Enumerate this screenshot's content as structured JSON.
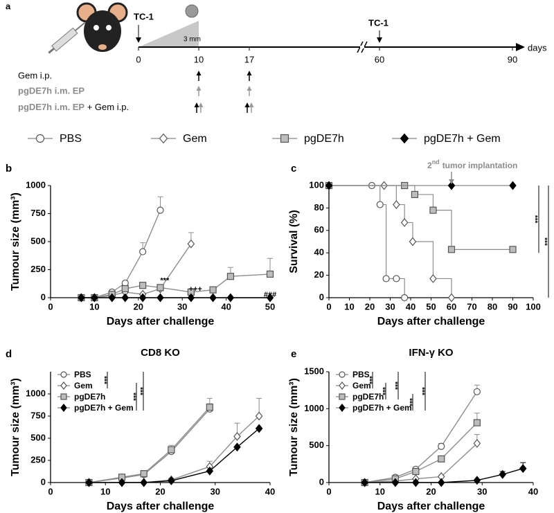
{
  "timeline": {
    "panel": "a",
    "start_label": "TC-1",
    "size_label": "3 mm",
    "rechallenge_label": "TC-1",
    "unit": "days",
    "ticks": [
      0,
      10,
      17,
      60,
      90
    ],
    "rows": [
      [
        "Gem i.p."
      ],
      [
        "pgDE7h i.m. EP"
      ],
      [
        "pgDE7h i.m. EP",
        "+ Gem i.p."
      ]
    ]
  },
  "chart_data": [
    {
      "type": "line",
      "panel": "b",
      "x_label": "Days after challenge",
      "y_label": "Tumour size (mm³)",
      "xlim": [
        0,
        50
      ],
      "xticks": [
        0,
        10,
        20,
        30,
        40,
        50
      ],
      "ylim": [
        0,
        1000
      ],
      "yticks": [
        0,
        250,
        500,
        750,
        1000
      ],
      "annotations": [
        "***",
        "+++",
        "###"
      ],
      "series": [
        {
          "name": "PBS",
          "marker": "circle",
          "color": "#8c8c8c",
          "marker_fill": "#ffffff",
          "x": [
            7,
            10,
            14,
            17,
            21,
            25
          ],
          "values": [
            0,
            0,
            50,
            130,
            410,
            780
          ],
          "errors": [
            0,
            0,
            10,
            20,
            80,
            120
          ]
        },
        {
          "name": "Gem",
          "marker": "diamond",
          "color": "#8c8c8c",
          "marker_fill": "#ffffff",
          "x": [
            7,
            10,
            14,
            17,
            21,
            25,
            32
          ],
          "values": [
            0,
            0,
            20,
            50,
            30,
            80,
            480
          ],
          "errors": [
            0,
            0,
            5,
            10,
            10,
            30,
            100
          ]
        },
        {
          "name": "pgDE7h",
          "marker": "square",
          "color": "#8c8c8c",
          "marker_fill": "#bdbdbd",
          "x": [
            7,
            10,
            14,
            17,
            21,
            25,
            32,
            37,
            41,
            50
          ],
          "values": [
            0,
            0,
            30,
            80,
            110,
            90,
            50,
            70,
            190,
            210
          ],
          "errors": [
            0,
            0,
            10,
            20,
            20,
            20,
            20,
            20,
            80,
            140
          ]
        },
        {
          "name": "pgDE7h + Gem",
          "marker": "diamond",
          "color": "#000000",
          "marker_fill": "#000000",
          "x": [
            7,
            10,
            14,
            17,
            21,
            25,
            32,
            37,
            41,
            50
          ],
          "values": [
            0,
            0,
            0,
            0,
            0,
            0,
            0,
            0,
            0,
            0
          ]
        }
      ]
    },
    {
      "type": "step",
      "panel": "c",
      "x_label": "Days after challenge",
      "y_label": "Survival (%)",
      "xlim": [
        0,
        100
      ],
      "xticks": [
        0,
        10,
        20,
        30,
        40,
        50,
        60,
        70,
        80,
        90,
        100
      ],
      "ylim": [
        0,
        100
      ],
      "yticks": [
        0,
        20,
        40,
        60,
        80,
        100
      ],
      "annotation_parts": [
        "2",
        "nd",
        "tumor implantation"
      ],
      "significance": [
        "***",
        "***"
      ],
      "series": [
        {
          "name": "PBS",
          "marker": "circle",
          "color": "#8c8c8c",
          "marker_fill": "#ffffff",
          "x": [
            0,
            21,
            25,
            28,
            33,
            37
          ],
          "values": [
            100,
            100,
            83,
            17,
            17,
            0
          ]
        },
        {
          "name": "Gem",
          "marker": "diamond",
          "color": "#8c8c8c",
          "marker_fill": "#ffffff",
          "x": [
            0,
            27,
            33,
            37,
            41,
            51,
            60
          ],
          "values": [
            100,
            100,
            83,
            67,
            50,
            17,
            0
          ]
        },
        {
          "name": "pgDE7h",
          "marker": "square",
          "color": "#8c8c8c",
          "marker_fill": "#bdbdbd",
          "x": [
            0,
            37,
            42,
            51,
            60,
            90
          ],
          "values": [
            100,
            100,
            92,
            78,
            43,
            43
          ]
        },
        {
          "name": "pgDE7h + Gem",
          "marker": "diamond",
          "color": "#8c8c8c",
          "marker_fill": "#000000",
          "x": [
            0,
            60,
            90
          ],
          "values": [
            100,
            100,
            100
          ]
        }
      ]
    },
    {
      "type": "line",
      "panel": "d",
      "title": "CD8 KO",
      "x_label": "Days after challenge",
      "y_label": "Tumour size (mm³)",
      "xlim": [
        0,
        40
      ],
      "xticks": [
        0,
        10,
        20,
        30,
        40
      ],
      "ylim": [
        0,
        1250
      ],
      "yticks": [
        0,
        250,
        500,
        750,
        1000
      ],
      "legend": "upper left",
      "significance": [
        "***",
        "***",
        "***"
      ],
      "series": [
        {
          "name": "PBS",
          "marker": "circle",
          "color": "#8c8c8c",
          "marker_fill": "#ffffff",
          "x": [
            7,
            13,
            17,
            22,
            29
          ],
          "values": [
            0,
            50,
            90,
            350,
            830
          ],
          "errors": [
            0,
            10,
            20,
            40,
            60
          ]
        },
        {
          "name": "Gem",
          "marker": "diamond",
          "color": "#8c8c8c",
          "marker_fill": "#ffffff",
          "x": [
            7,
            13,
            17,
            22,
            29,
            34,
            38
          ],
          "values": [
            0,
            0,
            0,
            30,
            180,
            520,
            750
          ],
          "errors": [
            0,
            0,
            0,
            20,
            60,
            150,
            200
          ]
        },
        {
          "name": "pgDE7h",
          "marker": "square",
          "color": "#8c8c8c",
          "marker_fill": "#bdbdbd",
          "x": [
            7,
            13,
            17,
            22,
            29
          ],
          "values": [
            0,
            60,
            100,
            370,
            850
          ],
          "errors": [
            0,
            10,
            20,
            50,
            100
          ]
        },
        {
          "name": "pgDE7h + Gem",
          "marker": "diamond",
          "color": "#000000",
          "marker_fill": "#000000",
          "x": [
            7,
            13,
            17,
            22,
            29,
            34,
            38
          ],
          "values": [
            0,
            0,
            0,
            20,
            130,
            400,
            610
          ]
        }
      ]
    },
    {
      "type": "line",
      "panel": "e",
      "title": "IFN-γ KO",
      "x_label": "Days after challenge",
      "y_label": "Tumour size (mm³)",
      "xlim": [
        0,
        40
      ],
      "xticks": [
        0,
        10,
        20,
        30,
        40
      ],
      "ylim": [
        0,
        1500
      ],
      "yticks": [
        0,
        500,
        1000,
        1500
      ],
      "legend": "upper left",
      "significance": [
        "***",
        "***",
        "***",
        "***",
        "***"
      ],
      "series": [
        {
          "name": "PBS",
          "marker": "circle",
          "color": "#8c8c8c",
          "marker_fill": "#ffffff",
          "x": [
            7,
            13,
            17,
            22,
            29
          ],
          "values": [
            0,
            70,
            180,
            490,
            1230
          ],
          "errors": [
            0,
            10,
            30,
            40,
            90
          ]
        },
        {
          "name": "Gem",
          "marker": "diamond",
          "color": "#8c8c8c",
          "marker_fill": "#ffffff",
          "x": [
            7,
            13,
            17,
            22,
            29
          ],
          "values": [
            0,
            20,
            50,
            80,
            530
          ],
          "errors": [
            0,
            0,
            10,
            20,
            120
          ]
        },
        {
          "name": "pgDE7h",
          "marker": "square",
          "color": "#8c8c8c",
          "marker_fill": "#bdbdbd",
          "x": [
            7,
            13,
            17,
            22,
            29
          ],
          "values": [
            0,
            50,
            150,
            320,
            810
          ],
          "errors": [
            0,
            10,
            20,
            40,
            130
          ]
        },
        {
          "name": "pgDE7h + Gem",
          "marker": "diamond",
          "color": "#000000",
          "marker_fill": "#000000",
          "x": [
            7,
            13,
            17,
            22,
            29,
            34,
            38
          ],
          "values": [
            0,
            0,
            0,
            0,
            30,
            110,
            190
          ],
          "errors": [
            0,
            0,
            0,
            0,
            0,
            40,
            80
          ]
        }
      ]
    }
  ]
}
